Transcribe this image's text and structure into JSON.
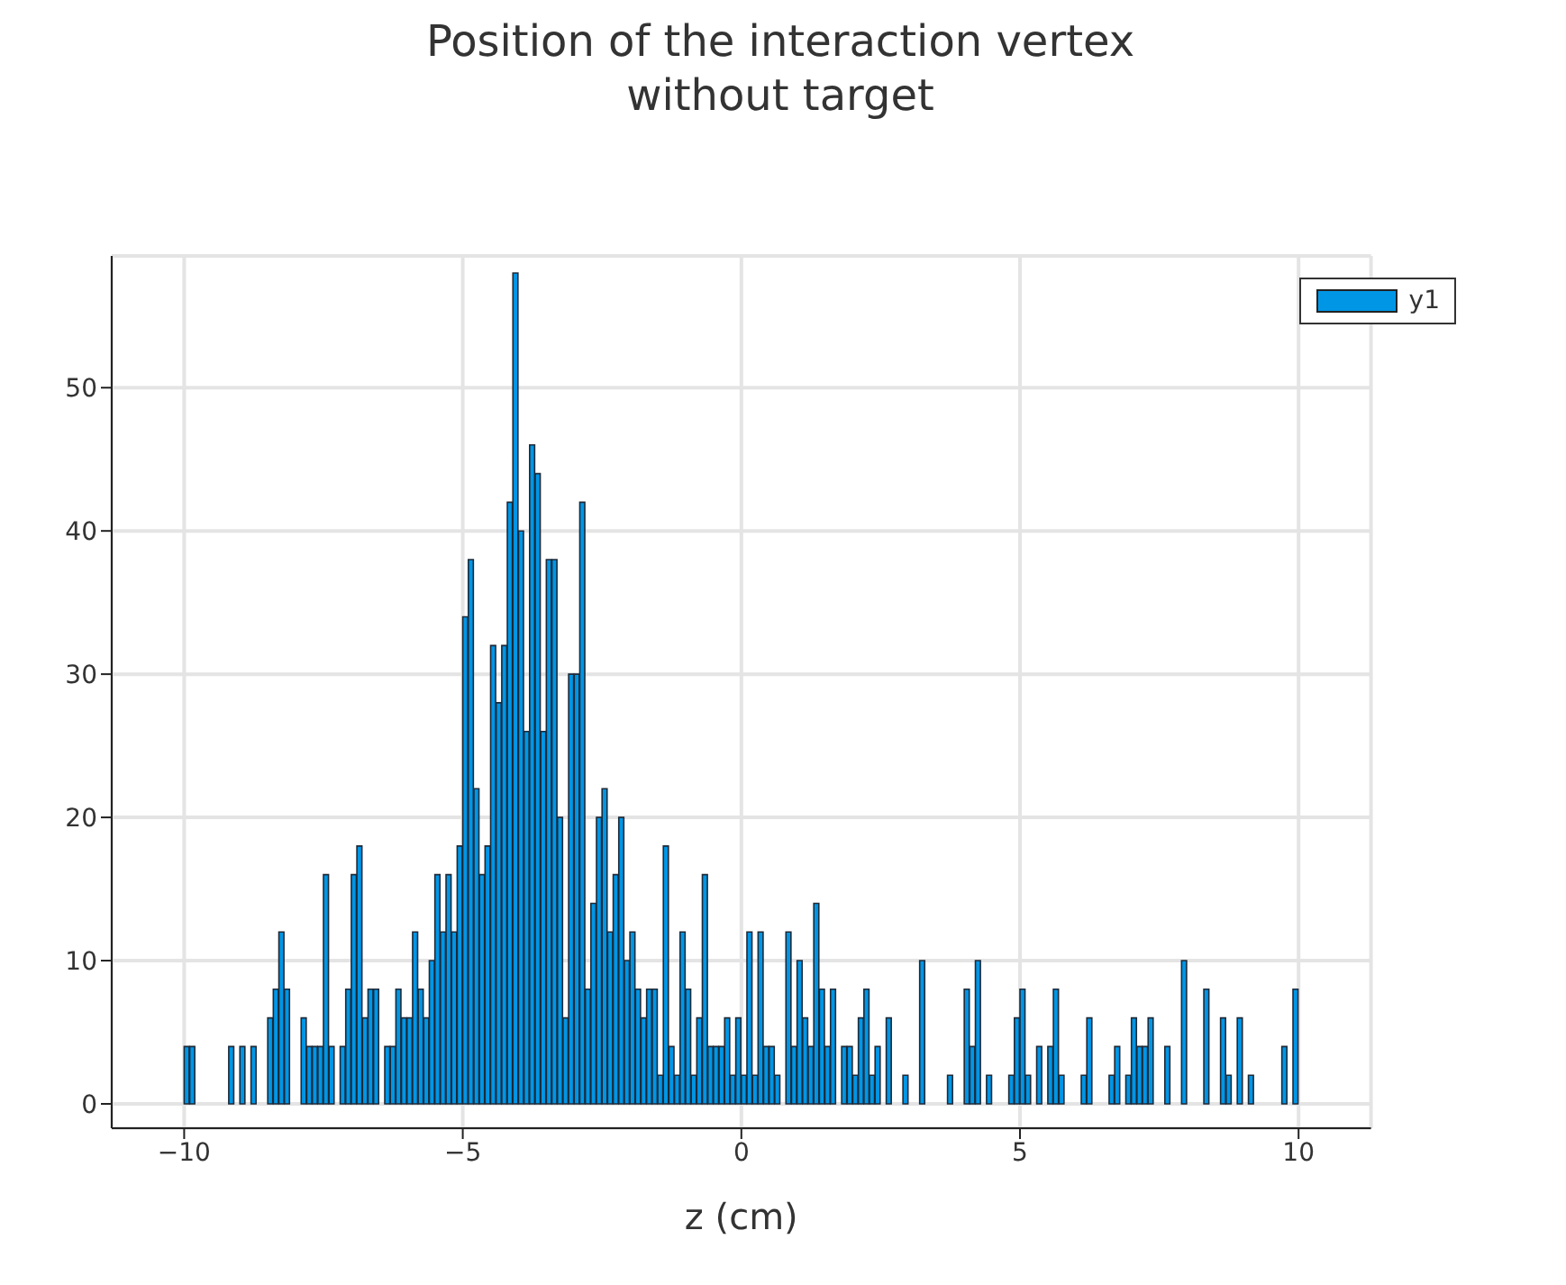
{
  "chart_data": {
    "type": "histogram",
    "title": "Position of the interaction vertex",
    "subtitle": "without target",
    "xlabel": "z (cm)",
    "bins": [
      -10,
      -9.9,
      -9.8,
      -9.7,
      -9.6,
      -9.5,
      -9.4,
      -9.3,
      -9.2,
      -9.1,
      -9,
      -8.9,
      -8.8,
      -8.7,
      -8.6,
      -8.5,
      -8.4,
      -8.3,
      -8.2,
      -8.1,
      -8,
      -7.9,
      -7.8,
      -7.7,
      -7.6,
      -7.5,
      -7.4,
      -7.3,
      -7.2,
      -7.1,
      -7,
      -6.9,
      -6.8,
      -6.7,
      -6.6,
      -6.5,
      -6.4,
      -6.3,
      -6.2,
      -6.1,
      -6,
      -5.9,
      -5.8,
      -5.7,
      -5.6,
      -5.5,
      -5.4,
      -5.3,
      -5.2,
      -5.1,
      -5,
      -4.9,
      -4.8,
      -4.7,
      -4.6,
      -4.5,
      -4.4,
      -4.3,
      -4.2,
      -4.1,
      -4,
      -3.9,
      -3.8,
      -3.7,
      -3.6,
      -3.5,
      -3.4,
      -3.3,
      -3.2,
      -3.1,
      -3,
      -2.9,
      -2.8,
      -2.7,
      -2.6,
      -2.5,
      -2.4,
      -2.3,
      -2.2,
      -2.1,
      -2,
      -1.9,
      -1.8,
      -1.7,
      -1.6,
      -1.5,
      -1.4,
      -1.3,
      -1.2,
      -1.1,
      -1,
      -0.9,
      -0.8,
      -0.7,
      -0.6,
      -0.5,
      -0.4,
      -0.3,
      -0.2,
      -0.1,
      0,
      0.1,
      0.2,
      0.3,
      0.4,
      0.5,
      0.6,
      0.7,
      0.8,
      0.9,
      1,
      1.1,
      1.2,
      1.3,
      1.4,
      1.5,
      1.6,
      1.7,
      1.8,
      1.9,
      2,
      2.1,
      2.2,
      2.3,
      2.4,
      2.5,
      2.6,
      2.7,
      2.8,
      2.9,
      3,
      3.1,
      3.2,
      3.3,
      3.4,
      3.5,
      3.6,
      3.7,
      3.8,
      3.9,
      4,
      4.1,
      4.2,
      4.3,
      4.4,
      4.5,
      4.6,
      4.7,
      4.8,
      4.9,
      5,
      5.1,
      5.2,
      5.3,
      5.4,
      5.5,
      5.6,
      5.7,
      5.8,
      5.9,
      6,
      6.1,
      6.2,
      6.3,
      6.4,
      6.5,
      6.6,
      6.7,
      6.8,
      6.9,
      7,
      7.1,
      7.2,
      7.3,
      7.4,
      7.5,
      7.6,
      7.7,
      7.8,
      7.9,
      8,
      8.1,
      8.2,
      8.3,
      8.4,
      8.5,
      8.6,
      8.7,
      8.8,
      8.9,
      9,
      9.1,
      9.2,
      9.3,
      9.4,
      9.5,
      9.6,
      9.7,
      9.8,
      9.9,
      10
    ],
    "series": [
      {
        "name": "y1",
        "color": "#0096e6",
        "values": [
          4,
          4,
          0,
          0,
          0,
          0,
          0,
          0,
          4,
          0,
          4,
          0,
          4,
          0,
          0,
          6,
          8,
          12,
          8,
          0,
          0,
          6,
          4,
          4,
          4,
          16,
          4,
          0,
          4,
          8,
          16,
          18,
          6,
          8,
          8,
          0,
          4,
          4,
          8,
          6,
          6,
          12,
          8,
          6,
          10,
          16,
          12,
          16,
          12,
          18,
          34,
          38,
          22,
          16,
          18,
          32,
          28,
          32,
          42,
          58,
          40,
          26,
          46,
          44,
          26,
          38,
          38,
          20,
          6,
          30,
          30,
          42,
          8,
          14,
          20,
          22,
          12,
          16,
          20,
          10,
          12,
          8,
          6,
          8,
          8,
          2,
          18,
          4,
          2,
          12,
          8,
          2,
          6,
          16,
          4,
          4,
          4,
          6,
          2,
          6,
          2,
          12,
          2,
          12,
          4,
          4,
          2,
          0,
          12,
          4,
          10,
          6,
          4,
          14,
          8,
          4,
          8,
          0,
          4,
          4,
          2,
          6,
          8,
          2,
          4,
          0,
          6,
          0,
          0,
          2,
          0,
          0,
          10,
          0,
          0,
          0,
          0,
          2,
          0,
          0,
          8,
          4,
          10,
          0,
          2,
          0,
          0,
          0,
          2,
          6,
          8,
          2,
          0,
          4,
          0,
          4,
          8,
          2,
          0,
          0,
          0,
          2,
          6,
          0,
          0,
          0,
          2,
          4,
          0,
          2,
          6,
          4,
          4,
          6,
          0,
          0,
          4,
          0,
          0,
          10,
          0,
          0,
          0,
          8,
          0,
          0,
          6,
          2,
          0,
          6,
          0,
          2,
          0,
          0,
          0,
          0,
          0,
          4,
          0,
          8
        ]
      }
    ],
    "xlim": [
      -11.3,
      11.3
    ],
    "xticks": [
      {
        "value": -10,
        "label": "−10"
      },
      {
        "value": -5,
        "label": "−5"
      },
      0,
      5,
      10
    ],
    "ylim": [
      -1.7,
      59.2
    ],
    "yticks": [
      0,
      10,
      20,
      30,
      40,
      50
    ],
    "grid": true,
    "legend": "top right"
  }
}
